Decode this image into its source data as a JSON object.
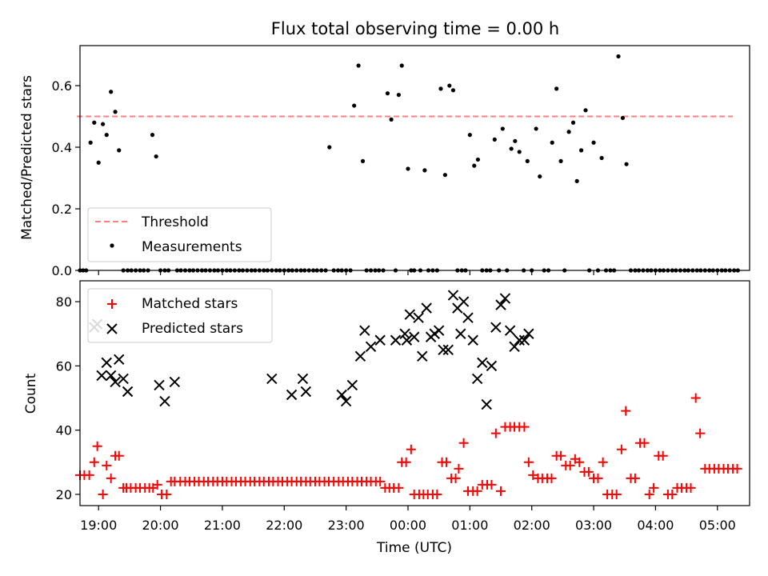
{
  "figure": {
    "title": "Flux total observing time = 0.00 h",
    "xlabel": "Time (UTC)",
    "x_tick_labels": [
      "19:00",
      "20:00",
      "21:00",
      "22:00",
      "23:00",
      "00:00",
      "01:00",
      "02:00",
      "03:00",
      "04:00",
      "05:00"
    ]
  },
  "chart_data": [
    {
      "type": "scatter",
      "ylabel": "Matched/Predicted stars",
      "ylim": [
        0,
        0.73
      ],
      "y_ticks": [
        "0.0",
        "0.2",
        "0.4",
        "0.6"
      ],
      "x_unit": "hours since 18:00 UTC",
      "xlim": [
        0.7,
        11.52
      ],
      "threshold": {
        "name": "Threshold",
        "value": 0.5,
        "color": "#ff7f7f",
        "style": "dashed"
      },
      "legend": {
        "position": "lower left",
        "entries": [
          "Threshold",
          "Measurements"
        ]
      },
      "series": [
        {
          "name": "Measurements",
          "color": "#000000",
          "marker": "dot",
          "x": [
            0.7,
            0.75,
            0.8,
            0.87,
            0.93,
            1.0,
            1.07,
            1.13,
            1.2,
            1.27,
            1.33,
            1.4,
            1.47,
            1.53,
            1.6,
            1.67,
            1.73,
            1.8,
            1.87,
            1.93,
            2.0,
            2.07,
            2.13,
            2.27,
            2.33,
            2.4,
            2.47,
            2.53,
            2.6,
            2.67,
            2.73,
            2.8,
            2.87,
            2.93,
            3.0,
            3.07,
            3.13,
            3.2,
            3.27,
            3.33,
            3.4,
            3.47,
            3.53,
            3.6,
            3.67,
            3.73,
            3.8,
            3.87,
            3.93,
            4.0,
            4.07,
            4.13,
            4.2,
            4.27,
            4.33,
            4.4,
            4.47,
            4.53,
            4.6,
            4.67,
            4.73,
            4.8,
            4.87,
            4.93,
            5.0,
            5.07,
            5.13,
            5.2,
            5.27,
            5.33,
            5.4,
            5.47,
            5.53,
            5.6,
            5.67,
            5.73,
            5.8,
            5.85,
            5.9,
            6.0,
            6.05,
            6.1,
            6.2,
            6.27,
            6.33,
            6.4,
            6.47,
            6.53,
            6.6,
            6.67,
            6.73,
            6.8,
            6.87,
            6.93,
            7.0,
            7.07,
            7.13,
            7.2,
            7.27,
            7.33,
            7.4,
            7.47,
            7.53,
            7.6,
            7.67,
            7.73,
            7.8,
            7.87,
            7.93,
            8.0,
            8.07,
            8.13,
            8.2,
            8.27,
            8.33,
            8.4,
            8.47,
            8.53,
            8.6,
            8.67,
            8.73,
            8.8,
            8.87,
            8.93,
            9.0,
            9.07,
            9.13,
            9.2,
            9.27,
            9.33,
            9.4,
            9.47,
            9.53,
            9.6,
            9.67,
            9.73,
            9.8,
            9.87,
            9.93,
            10.0,
            10.07,
            10.13,
            10.2,
            10.27,
            10.33,
            10.4,
            10.47,
            10.53,
            10.6,
            10.67,
            10.73,
            10.8,
            10.87,
            10.93,
            11.0,
            11.07,
            11.13,
            11.2,
            11.27,
            11.33
          ],
          "y": [
            0.0,
            0.0,
            0.0,
            0.415,
            0.48,
            0.35,
            0.475,
            0.44,
            0.58,
            0.515,
            0.39,
            0.0,
            0.0,
            0.0,
            0.0,
            0.0,
            0.0,
            0.0,
            0.44,
            0.37,
            0.0,
            0.0,
            0.0,
            0.0,
            0.0,
            0.0,
            0.0,
            0.0,
            0.0,
            0.0,
            0.0,
            0.0,
            0.0,
            0.0,
            0.0,
            0.0,
            0.0,
            0.0,
            0.0,
            0.0,
            0.0,
            0.0,
            0.0,
            0.0,
            0.0,
            0.0,
            0.0,
            0.0,
            0.0,
            0.0,
            0.0,
            0.0,
            0.0,
            0.0,
            0.0,
            0.0,
            0.0,
            0.0,
            0.0,
            0.0,
            0.4,
            0.0,
            0.0,
            0.0,
            0.0,
            0.0,
            0.535,
            0.665,
            0.355,
            0.0,
            0.0,
            0.0,
            0.0,
            0.0,
            0.575,
            0.49,
            0.0,
            0.57,
            0.665,
            0.33,
            0.0,
            0.0,
            0.0,
            0.325,
            0.0,
            0.0,
            0.0,
            0.59,
            0.31,
            0.6,
            0.585,
            0.0,
            0.0,
            0.0,
            0.44,
            0.34,
            0.36,
            0.0,
            0.0,
            0.0,
            0.425,
            0.0,
            0.46,
            0.0,
            0.395,
            0.42,
            0.385,
            0.0,
            0.355,
            0.0,
            0.46,
            0.305,
            0.0,
            0.0,
            0.415,
            0.59,
            0.355,
            0.0,
            0.45,
            0.48,
            0.29,
            0.39,
            0.52,
            0.0,
            0.415,
            0.0,
            0.365,
            0.0,
            0.0,
            0.0,
            0.695,
            0.495,
            0.345,
            0.0,
            0.0,
            0.0,
            0.0,
            0.0,
            0.0,
            0.0,
            0.0,
            0.0,
            0.0,
            0.0,
            0.0,
            0.0,
            0.0,
            0.0,
            0.0,
            0.0,
            0.0,
            0.0,
            0.0,
            0.0,
            0.0,
            0.0,
            0.0,
            0.0,
            0.0,
            0.0
          ]
        }
      ]
    },
    {
      "type": "scatter",
      "ylabel": "Count",
      "ylim": [
        16.5,
        86.5
      ],
      "y_ticks": [
        "20",
        "40",
        "60",
        "80"
      ],
      "x_unit": "hours since 18:00 UTC",
      "xlim": [
        0.7,
        11.52
      ],
      "legend": {
        "position": "upper left",
        "entries": [
          "Matched stars",
          "Predicted stars"
        ]
      },
      "series": [
        {
          "name": "Matched stars",
          "color": "#ff0000",
          "marker": "plus",
          "x": [
            0.7,
            0.77,
            0.85,
            0.93,
            0.98,
            1.07,
            1.13,
            1.2,
            1.27,
            1.33,
            1.4,
            1.45,
            1.52,
            1.6,
            1.67,
            1.75,
            1.82,
            1.88,
            1.95,
            2.02,
            2.1,
            2.17,
            2.23,
            2.32,
            2.4,
            2.47,
            2.55,
            2.62,
            2.7,
            2.77,
            2.85,
            2.92,
            3.0,
            3.07,
            3.15,
            3.22,
            3.3,
            3.37,
            3.45,
            3.52,
            3.6,
            3.67,
            3.75,
            3.82,
            3.9,
            3.97,
            4.05,
            4.12,
            4.2,
            4.27,
            4.35,
            4.42,
            4.5,
            4.57,
            4.65,
            4.72,
            4.8,
            4.88,
            4.95,
            5.03,
            5.1,
            5.18,
            5.25,
            5.33,
            5.4,
            5.48,
            5.55,
            5.63,
            5.7,
            5.77,
            5.85,
            5.9,
            5.97,
            6.05,
            6.1,
            6.18,
            6.25,
            6.32,
            6.4,
            6.47,
            6.55,
            6.62,
            6.7,
            6.77,
            6.82,
            6.9,
            6.97,
            7.05,
            7.12,
            7.2,
            7.28,
            7.35,
            7.42,
            7.5,
            7.57,
            7.65,
            7.72,
            7.8,
            7.88,
            7.95,
            8.02,
            8.1,
            8.17,
            8.25,
            8.32,
            8.4,
            8.47,
            8.55,
            8.62,
            8.7,
            8.77,
            8.85,
            8.92,
            9.0,
            9.07,
            9.15,
            9.22,
            9.3,
            9.37,
            9.45,
            9.52,
            9.6,
            9.67,
            9.75,
            9.82,
            9.9,
            9.97,
            10.05,
            10.12,
            10.2,
            10.27,
            10.35,
            10.42,
            10.5,
            10.57,
            10.65,
            10.72,
            10.8,
            10.87,
            10.95,
            11.02,
            11.1,
            11.17,
            11.25,
            11.32
          ],
          "y": [
            26,
            26,
            26,
            30,
            35,
            20,
            29,
            25,
            32,
            32,
            22,
            22,
            22,
            22,
            22,
            22,
            22,
            22,
            23,
            20,
            20,
            24,
            24,
            24,
            24,
            24,
            24,
            24,
            24,
            24,
            24,
            24,
            24,
            24,
            24,
            24,
            24,
            24,
            24,
            24,
            24,
            24,
            24,
            24,
            24,
            24,
            24,
            24,
            24,
            24,
            24,
            24,
            24,
            24,
            24,
            24,
            24,
            24,
            24,
            24,
            24,
            24,
            24,
            24,
            24,
            24,
            24,
            22,
            22,
            22,
            22,
            30,
            30,
            34,
            20,
            20,
            20,
            20,
            20,
            20,
            30,
            30,
            25,
            25,
            28,
            36,
            21,
            21,
            21,
            23,
            23,
            23,
            39,
            21,
            41,
            41,
            41,
            41,
            41,
            30,
            26,
            25,
            25,
            25,
            25,
            32,
            32,
            29,
            29,
            31,
            30,
            27,
            27,
            25,
            25,
            30,
            20,
            20,
            20,
            34,
            46,
            25,
            25,
            36,
            36,
            20,
            22,
            32,
            32,
            20,
            20,
            22,
            22,
            22,
            22,
            50,
            39,
            28,
            28,
            28,
            28,
            28,
            28,
            28,
            28
          ]
        },
        {
          "name": "Predicted stars",
          "color": "#000000",
          "marker": "x",
          "x": [
            0.93,
            0.98,
            1.05,
            1.13,
            1.2,
            1.27,
            1.33,
            1.4,
            1.47,
            1.98,
            2.07,
            2.23,
            3.8,
            4.12,
            4.3,
            4.35,
            4.93,
            5.0,
            5.1,
            5.23,
            5.3,
            5.4,
            5.55,
            5.8,
            5.95,
            5.98,
            6.03,
            6.1,
            6.17,
            6.23,
            6.3,
            6.37,
            6.43,
            6.5,
            6.57,
            6.65,
            6.73,
            6.8,
            6.85,
            6.9,
            6.97,
            7.05,
            7.12,
            7.2,
            7.27,
            7.35,
            7.42,
            7.5,
            7.57,
            7.65,
            7.72,
            7.8,
            7.88,
            7.95
          ],
          "y": [
            72,
            73,
            57,
            61,
            57,
            55,
            62,
            56,
            52,
            54,
            49,
            55,
            56,
            51,
            56,
            52,
            51,
            49,
            54,
            63,
            71,
            66,
            68,
            68,
            70,
            68,
            76,
            69,
            75,
            63,
            78,
            69,
            70,
            71,
            65,
            65,
            82,
            78,
            70,
            80,
            75,
            68,
            56,
            61,
            48,
            60,
            72,
            79,
            81,
            71,
            66,
            68,
            68,
            70
          ]
        }
      ]
    }
  ]
}
